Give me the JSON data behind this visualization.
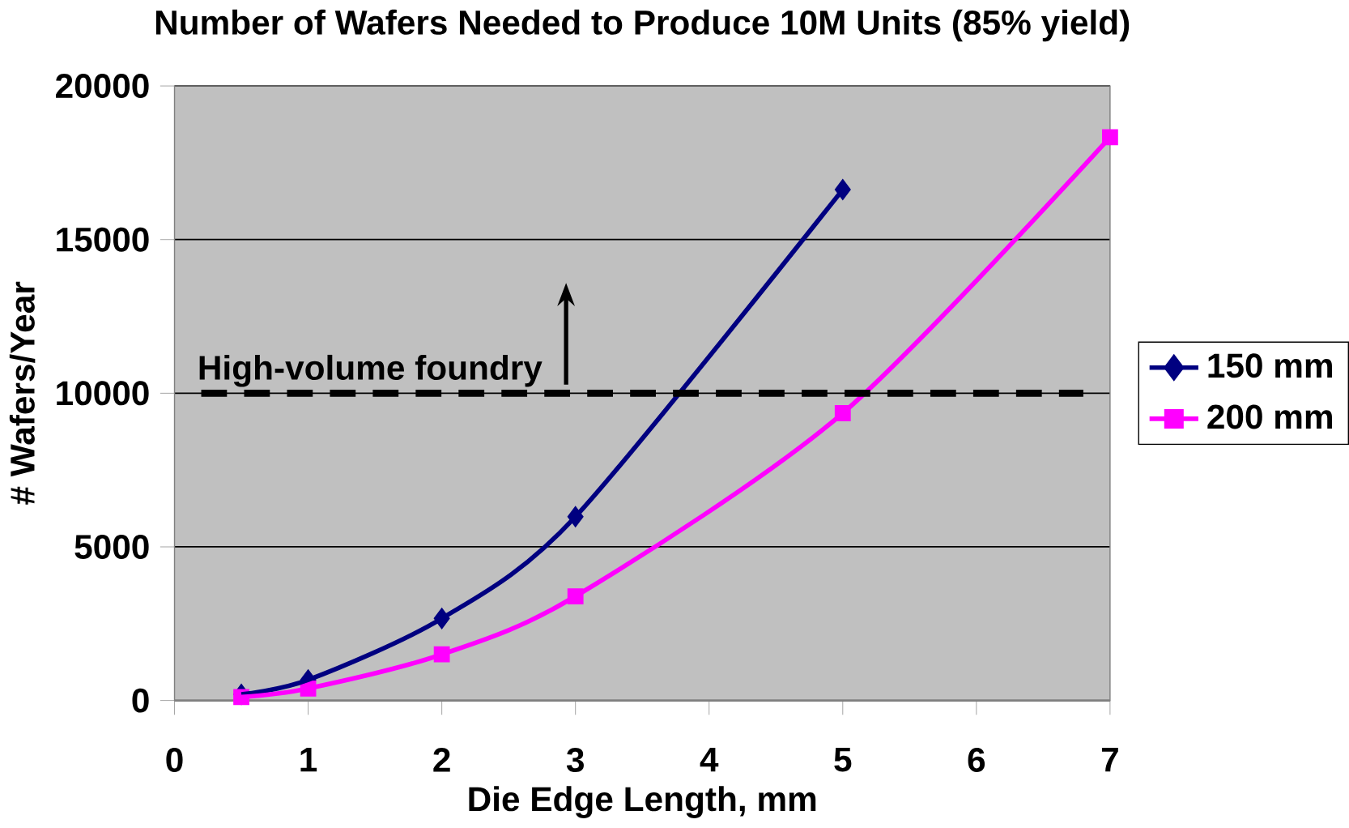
{
  "chart_data": {
    "type": "line",
    "title": "Number of Wafers Needed to Produce 10M Units (85% yield)",
    "xlabel": "Die Edge Length, mm",
    "ylabel": "# Wafers/Year",
    "x": [
      0.5,
      1,
      2,
      3,
      5,
      7
    ],
    "series": [
      {
        "name": "150 mm",
        "color": "#000080",
        "marker": "diamond",
        "values": [
          200,
          670,
          2670,
          5980,
          16630,
          null
        ]
      },
      {
        "name": "200 mm",
        "color": "#ff00ff",
        "marker": "square",
        "values": [
          110,
          390,
          1500,
          3390,
          9350,
          18330
        ]
      }
    ],
    "xlim": [
      0,
      7
    ],
    "xticks": [
      0,
      1,
      2,
      3,
      4,
      5,
      6,
      7
    ],
    "ylim": [
      0,
      20000
    ],
    "yticks": [
      0,
      5000,
      10000,
      15000,
      20000
    ],
    "grid": "y",
    "legend": "right",
    "line_style": "solid",
    "ref_lines": [
      {
        "axis": "y",
        "value": 10000,
        "label": "High-volume foundry",
        "color": "#000000",
        "line_style": "dashed"
      }
    ]
  }
}
